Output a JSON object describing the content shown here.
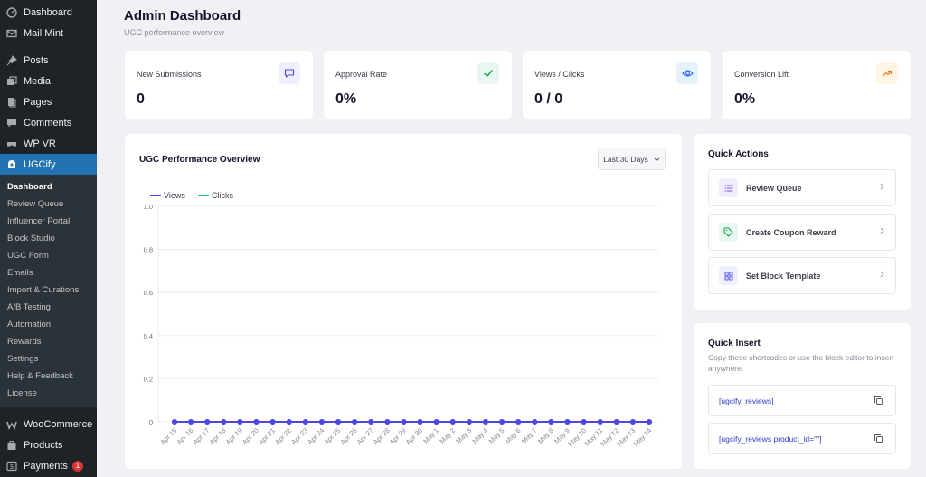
{
  "sidebar": {
    "top_items": [
      {
        "label": "Dashboard",
        "icon": "dashboard-icon"
      },
      {
        "label": "Mail Mint",
        "icon": "mail-icon"
      },
      {
        "label": "Posts",
        "icon": "pin-icon"
      },
      {
        "label": "Media",
        "icon": "media-icon"
      },
      {
        "label": "Pages",
        "icon": "pages-icon"
      },
      {
        "label": "Comments",
        "icon": "comments-icon"
      },
      {
        "label": "WP VR",
        "icon": "vr-icon"
      },
      {
        "label": "UGCify",
        "icon": "ugcify-icon"
      }
    ],
    "sub_items": [
      "Dashboard",
      "Review Queue",
      "Influencer Portal",
      "Block Studio",
      "UGC Form",
      "Emails",
      "Import & Curations",
      "A/B Testing",
      "Automation",
      "Rewards",
      "Settings",
      "Help & Feedback",
      "License"
    ],
    "bottom_items": [
      {
        "label": "WooCommerce",
        "icon": "woocommerce-icon"
      },
      {
        "label": "Products",
        "icon": "products-icon"
      },
      {
        "label": "Payments",
        "icon": "payments-icon",
        "badge": "1"
      }
    ]
  },
  "header": {
    "title": "Admin Dashboard",
    "subtitle": "UGC performance overview"
  },
  "stats": [
    {
      "label": "New Submissions",
      "value": "0",
      "icon": "message-icon",
      "icon_bg": "#eef0ff",
      "icon_color": "#4f46e5"
    },
    {
      "label": "Approval Rate",
      "value": "0%",
      "icon": "check-icon",
      "icon_bg": "#e8f7ef",
      "icon_color": "#16a34a"
    },
    {
      "label": "Views / Clicks",
      "value": "0 / 0",
      "icon": "eye-icon",
      "icon_bg": "#e6f3fd",
      "icon_color": "#2563eb"
    },
    {
      "label": "Conversion Lift",
      "value": "0%",
      "icon": "trend-up-icon",
      "icon_bg": "#fff4e6",
      "icon_color": "#ea7a16"
    }
  ],
  "chart_panel": {
    "title": "UGC Performance Overview",
    "range": "Last 30 Days"
  },
  "chart_data": {
    "type": "line",
    "title": "",
    "xlabel": "",
    "ylabel": "",
    "x": [
      "Apr 15",
      "Apr 16",
      "Apr 17",
      "Apr 18",
      "Apr 19",
      "Apr 20",
      "Apr 21",
      "Apr 22",
      "Apr 23",
      "Apr 24",
      "Apr 25",
      "Apr 26",
      "Apr 27",
      "Apr 28",
      "Apr 29",
      "Apr 30",
      "May 1",
      "May 2",
      "May 3",
      "May 4",
      "May 5",
      "May 6",
      "May 7",
      "May 8",
      "May 9",
      "May 10",
      "May 11",
      "May 12",
      "May 13",
      "May 14"
    ],
    "series": [
      {
        "name": "Views",
        "color": "#4f46e5",
        "values": [
          0,
          0,
          0,
          0,
          0,
          0,
          0,
          0,
          0,
          0,
          0,
          0,
          0,
          0,
          0,
          0,
          0,
          0,
          0,
          0,
          0,
          0,
          0,
          0,
          0,
          0,
          0,
          0,
          0,
          0
        ]
      },
      {
        "name": "Clicks",
        "color": "#22c55e",
        "values": [
          0,
          0,
          0,
          0,
          0,
          0,
          0,
          0,
          0,
          0,
          0,
          0,
          0,
          0,
          0,
          0,
          0,
          0,
          0,
          0,
          0,
          0,
          0,
          0,
          0,
          0,
          0,
          0,
          0,
          0
        ]
      }
    ],
    "yticks": [
      "0",
      "0.2",
      "0.4",
      "0.6",
      "0.8",
      "1.0"
    ],
    "ylim": [
      0,
      1
    ],
    "grid": true,
    "legend": "top-left"
  },
  "quick_actions": {
    "title": "Quick Actions",
    "items": [
      {
        "label": "Review Queue",
        "icon": "list-icon",
        "icon_bg": "#f1ecff",
        "icon_color": "#7c5cd6"
      },
      {
        "label": "Create Coupon Reward",
        "icon": "tag-icon",
        "icon_bg": "#e8f7ef",
        "icon_color": "#16a34a"
      },
      {
        "label": "Set Block Template",
        "icon": "grid-icon",
        "icon_bg": "#eef0ff",
        "icon_color": "#4f46e5"
      }
    ]
  },
  "quick_insert": {
    "title": "Quick Insert",
    "description": "Copy these shortcodes or use the block editor to insert anywhere.",
    "shortcodes": [
      "[ugcify_reviews]",
      "[ugcify_reviews product_id=\"\"]"
    ]
  }
}
